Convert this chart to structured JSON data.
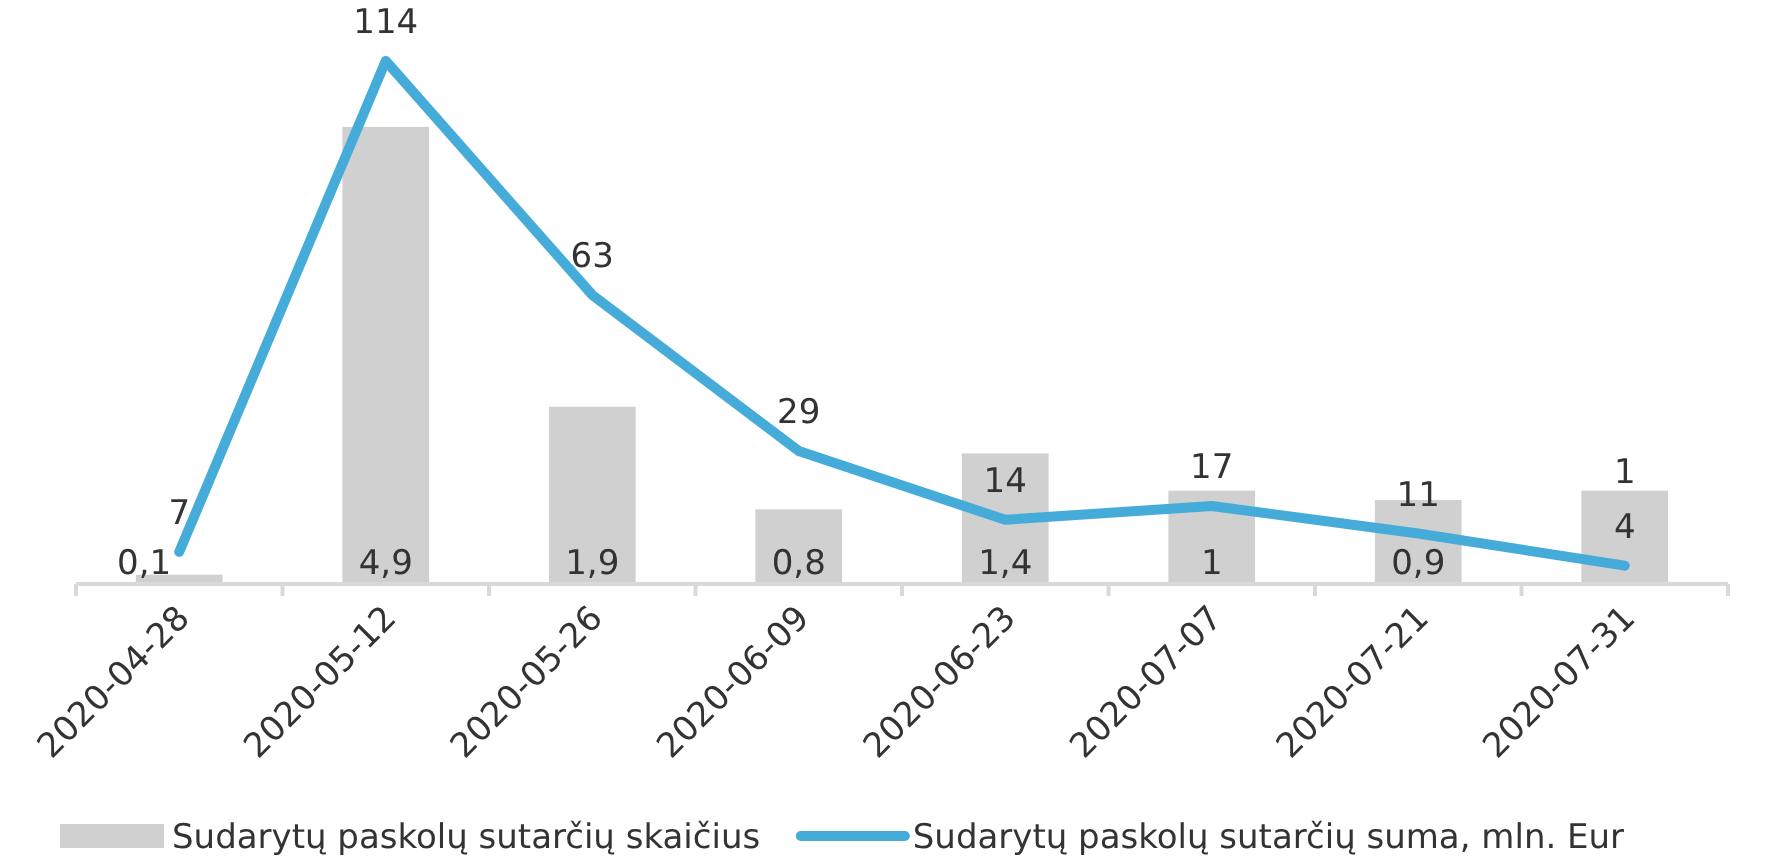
{
  "chart_data": {
    "type": "bar",
    "categories": [
      "2020-04-28",
      "2020-05-12",
      "2020-05-26",
      "2020-06-09",
      "2020-06-23",
      "2020-07-07",
      "2020-07-21",
      "2020-07-31"
    ],
    "series": [
      {
        "name": "Sudarytų paskolų sutarčių skaičius",
        "color": "#d0d0d0",
        "values": [
          0.1,
          4.9,
          1.9,
          0.8,
          1.4,
          1,
          0.9,
          1
        ],
        "value_labels": [
          "0,1",
          "4,9",
          "1,9",
          "0,8",
          "1,4",
          "1",
          "0,9",
          "1"
        ]
      },
      {
        "name": "Sudarytų paskolų sutarčių suma, mln. Eur",
        "type": "line",
        "axis": "y2",
        "color": "#45acd9",
        "values": [
          7,
          114,
          63,
          29,
          14,
          17,
          11,
          4
        ],
        "value_labels": [
          "7",
          "114",
          "63",
          "29",
          "14",
          "17",
          "11",
          "4"
        ]
      }
    ],
    "legend": "bottom",
    "grid": false
  }
}
